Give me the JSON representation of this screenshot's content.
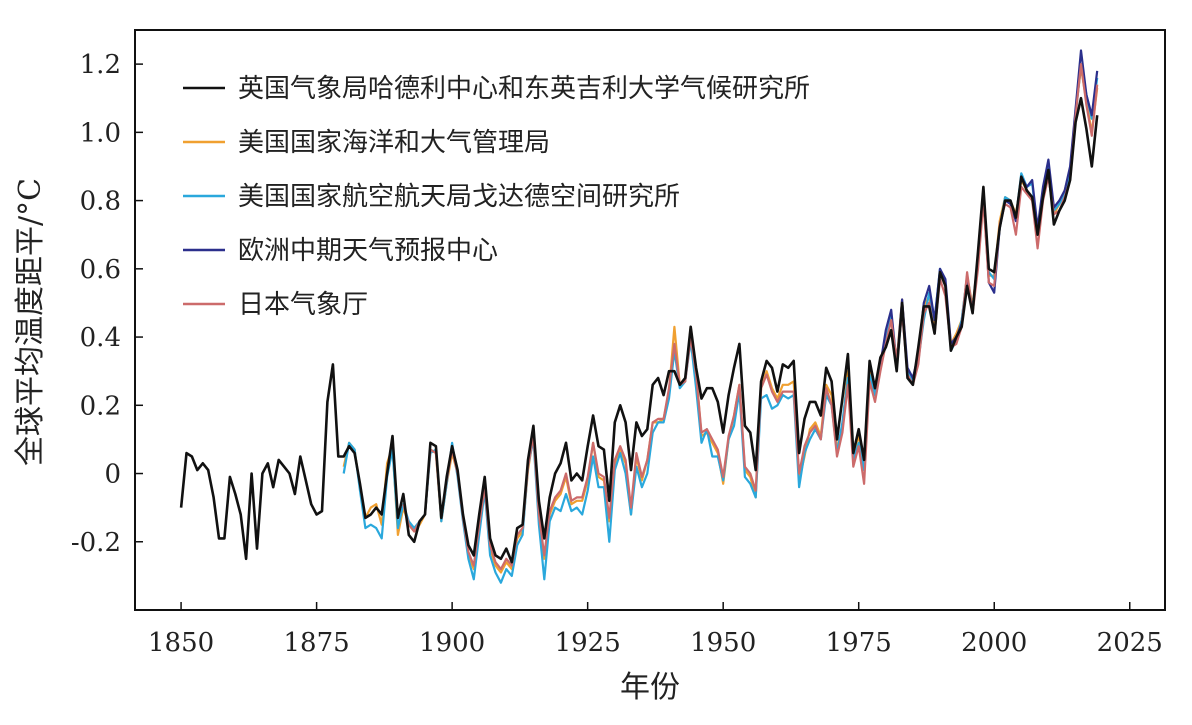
{
  "chart_data": {
    "type": "line",
    "title": "",
    "xlabel": "年份",
    "ylabel": "全球平均温度距平/°C",
    "xlim": [
      1841.5,
      2031.5
    ],
    "ylim": [
      -0.4,
      1.3
    ],
    "xticks": [
      1850,
      1875,
      1900,
      1925,
      1950,
      1975,
      2000,
      2025
    ],
    "yticks": [
      -0.2,
      0,
      0.2,
      0.4,
      0.6,
      0.8,
      1.0,
      1.2
    ],
    "ytick_labels": [
      "-0.2",
      "0",
      "0.2",
      "0.4",
      "0.6",
      "0.8",
      "1.0",
      "1.2"
    ],
    "grid": false,
    "legend_position": "top-left",
    "series": [
      {
        "name": "英国气象局哈德利中心和东英吉利大学气候研究所",
        "color": "#111111",
        "start": 1850,
        "values": [
          -0.1,
          0.06,
          0.05,
          0.01,
          0.03,
          0.01,
          -0.07,
          -0.19,
          -0.19,
          -0.01,
          -0.06,
          -0.12,
          -0.25,
          0.0,
          -0.22,
          0.0,
          0.03,
          -0.04,
          0.04,
          0.02,
          0.0,
          -0.06,
          0.05,
          -0.02,
          -0.09,
          -0.12,
          -0.11,
          0.21,
          0.32,
          0.05,
          0.05,
          0.08,
          0.06,
          -0.03,
          -0.13,
          -0.12,
          -0.1,
          -0.12,
          0.0,
          0.11,
          -0.13,
          -0.06,
          -0.18,
          -0.2,
          -0.14,
          -0.12,
          0.09,
          0.08,
          -0.13,
          -0.01,
          0.08,
          0.01,
          -0.12,
          -0.21,
          -0.24,
          -0.12,
          -0.01,
          -0.19,
          -0.24,
          -0.25,
          -0.22,
          -0.26,
          -0.16,
          -0.15,
          0.04,
          0.14,
          -0.08,
          -0.19,
          -0.07,
          0.0,
          0.03,
          0.09,
          -0.02,
          0.0,
          -0.02,
          0.08,
          0.17,
          0.08,
          0.07,
          -0.08,
          0.15,
          0.2,
          0.15,
          0.01,
          0.15,
          0.11,
          0.13,
          0.26,
          0.28,
          0.23,
          0.3,
          0.3,
          0.26,
          0.28,
          0.43,
          0.31,
          0.22,
          0.25,
          0.25,
          0.21,
          0.12,
          0.23,
          0.31,
          0.38,
          0.14,
          0.12,
          0.01,
          0.27,
          0.33,
          0.31,
          0.24,
          0.32,
          0.31,
          0.33,
          0.06,
          0.16,
          0.21,
          0.21,
          0.17,
          0.31,
          0.27,
          0.1,
          0.22,
          0.35,
          0.06,
          0.13,
          0.04,
          0.33,
          0.25,
          0.34,
          0.37,
          0.42,
          0.3,
          0.5,
          0.28,
          0.26,
          0.37,
          0.49,
          0.49,
          0.41,
          0.59,
          0.55,
          0.36,
          0.4,
          0.43,
          0.55,
          0.47,
          0.65,
          0.84,
          0.6,
          0.59,
          0.72,
          0.8,
          0.8,
          0.75,
          0.87,
          0.83,
          0.81,
          0.7,
          0.81,
          0.89,
          0.73,
          0.77,
          0.8,
          0.86,
          1.03,
          1.1,
          1.01,
          0.9,
          1.05
        ]
      },
      {
        "name": "美国国家海洋和大气管理局",
        "color": "#f0a030",
        "start": 1880,
        "values": [
          0.02,
          0.09,
          0.07,
          -0.04,
          -0.13,
          -0.1,
          -0.09,
          -0.15,
          0.03,
          0.08,
          -0.18,
          -0.1,
          -0.15,
          -0.17,
          -0.15,
          -0.12,
          0.07,
          0.06,
          -0.14,
          -0.03,
          0.06,
          0.0,
          -0.13,
          -0.24,
          -0.28,
          -0.15,
          -0.05,
          -0.22,
          -0.27,
          -0.29,
          -0.26,
          -0.28,
          -0.19,
          -0.17,
          0.01,
          0.11,
          -0.13,
          -0.25,
          -0.12,
          -0.08,
          -0.06,
          -0.01,
          -0.09,
          -0.08,
          -0.08,
          -0.02,
          0.09,
          -0.01,
          -0.02,
          -0.14,
          0.03,
          0.07,
          0.03,
          -0.12,
          0.05,
          -0.02,
          0.04,
          0.15,
          0.15,
          0.16,
          0.24,
          0.43,
          0.26,
          0.27,
          0.43,
          0.3,
          0.11,
          0.12,
          0.09,
          0.06,
          -0.03,
          0.1,
          0.17,
          0.26,
          0.01,
          -0.01,
          -0.07,
          0.25,
          0.3,
          0.25,
          0.22,
          0.26,
          0.26,
          0.27,
          -0.02,
          0.05,
          0.13,
          0.15,
          0.11,
          0.26,
          0.23,
          0.07,
          0.14,
          0.3,
          0.06,
          0.11,
          0.02,
          0.31,
          0.24,
          0.33,
          0.4,
          0.45,
          0.33,
          0.51,
          0.3,
          0.27,
          0.33,
          0.49,
          0.52,
          0.43,
          0.59,
          0.55,
          0.38,
          0.41,
          0.45,
          0.58,
          0.49,
          0.63,
          0.8,
          0.58,
          0.58,
          0.74,
          0.81,
          0.8,
          0.76,
          0.86,
          0.83,
          0.8,
          0.72,
          0.82,
          0.87,
          0.76,
          0.79,
          0.83,
          0.89,
          1.06,
          1.19,
          1.09,
          1.0,
          1.13
        ]
      },
      {
        "name": "美国国家航空航天局戈达德空间研究所",
        "color": "#2aa8dc",
        "start": 1880,
        "values": [
          0.0,
          0.09,
          0.07,
          -0.05,
          -0.16,
          -0.15,
          -0.16,
          -0.19,
          -0.01,
          0.07,
          -0.16,
          -0.09,
          -0.14,
          -0.16,
          -0.14,
          -0.12,
          0.06,
          0.07,
          -0.14,
          -0.03,
          0.09,
          -0.01,
          -0.14,
          -0.25,
          -0.31,
          -0.18,
          -0.05,
          -0.24,
          -0.29,
          -0.32,
          -0.28,
          -0.3,
          -0.21,
          -0.18,
          0.02,
          0.1,
          -0.15,
          -0.31,
          -0.14,
          -0.1,
          -0.11,
          -0.06,
          -0.11,
          -0.1,
          -0.12,
          -0.05,
          0.05,
          -0.04,
          -0.04,
          -0.2,
          0.01,
          0.06,
          0.0,
          -0.12,
          0.02,
          -0.04,
          0.0,
          0.12,
          0.15,
          0.15,
          0.22,
          0.36,
          0.25,
          0.27,
          0.39,
          0.25,
          0.09,
          0.13,
          0.05,
          0.05,
          -0.02,
          0.1,
          0.14,
          0.24,
          -0.01,
          -0.03,
          -0.07,
          0.22,
          0.23,
          0.19,
          0.2,
          0.23,
          0.22,
          0.23,
          -0.04,
          0.06,
          0.1,
          0.13,
          0.1,
          0.23,
          0.2,
          0.06,
          0.15,
          0.28,
          0.04,
          0.09,
          0.01,
          0.29,
          0.23,
          0.32,
          0.39,
          0.46,
          0.31,
          0.48,
          0.3,
          0.27,
          0.33,
          0.45,
          0.53,
          0.45,
          0.6,
          0.56,
          0.36,
          0.39,
          0.45,
          0.58,
          0.48,
          0.62,
          0.82,
          0.59,
          0.57,
          0.72,
          0.81,
          0.8,
          0.75,
          0.88,
          0.84,
          0.85,
          0.71,
          0.83,
          0.9,
          0.77,
          0.79,
          0.82,
          0.88,
          1.05,
          1.2,
          1.11,
          1.04,
          1.16
        ]
      },
      {
        "name": "欧洲中期天气预报中心",
        "color": "#2b2f8c",
        "start": 1979,
        "values": [
          0.32,
          0.42,
          0.48,
          0.32,
          0.51,
          0.31,
          0.28,
          0.35,
          0.5,
          0.55,
          0.45,
          0.6,
          0.57,
          0.38,
          0.4,
          0.44,
          0.57,
          0.48,
          0.63,
          0.82,
          0.56,
          0.53,
          0.72,
          0.8,
          0.79,
          0.74,
          0.87,
          0.84,
          0.86,
          0.72,
          0.84,
          0.92,
          0.78,
          0.8,
          0.83,
          0.9,
          1.07,
          1.24,
          1.11,
          1.05,
          1.18
        ]
      },
      {
        "name": "日本气象厅",
        "color": "#cc6b6b",
        "start": 1891,
        "values": [
          -0.09,
          -0.15,
          -0.17,
          -0.14,
          -0.12,
          0.07,
          0.06,
          -0.13,
          -0.02,
          0.07,
          0.0,
          -0.13,
          -0.23,
          -0.27,
          -0.15,
          -0.04,
          -0.21,
          -0.26,
          -0.28,
          -0.25,
          -0.27,
          -0.18,
          -0.16,
          0.02,
          0.11,
          -0.12,
          -0.24,
          -0.11,
          -0.07,
          -0.05,
          0.0,
          -0.08,
          -0.07,
          -0.07,
          -0.01,
          0.09,
          0.0,
          -0.01,
          -0.13,
          0.04,
          0.08,
          0.04,
          -0.1,
          0.06,
          -0.01,
          0.04,
          0.15,
          0.16,
          0.16,
          0.25,
          0.38,
          0.26,
          0.27,
          0.4,
          0.29,
          0.12,
          0.13,
          0.1,
          0.07,
          -0.01,
          0.11,
          0.17,
          0.26,
          0.02,
          0.0,
          -0.05,
          0.25,
          0.29,
          0.24,
          0.21,
          0.24,
          0.24,
          0.24,
          0.0,
          0.08,
          0.12,
          0.14,
          0.1,
          0.25,
          0.2,
          0.05,
          0.12,
          0.26,
          0.02,
          0.08,
          -0.03,
          0.27,
          0.21,
          0.3,
          0.38,
          0.45,
          0.33,
          0.47,
          0.29,
          0.26,
          0.32,
          0.47,
          0.5,
          0.41,
          0.57,
          0.52,
          0.37,
          0.38,
          0.43,
          0.59,
          0.47,
          0.6,
          0.8,
          0.56,
          0.55,
          0.73,
          0.79,
          0.78,
          0.7,
          0.84,
          0.82,
          0.8,
          0.66,
          0.8,
          0.87,
          0.76,
          0.77,
          0.81,
          0.86,
          1.05,
          1.2,
          1.08,
          0.99,
          1.14
        ]
      }
    ]
  }
}
